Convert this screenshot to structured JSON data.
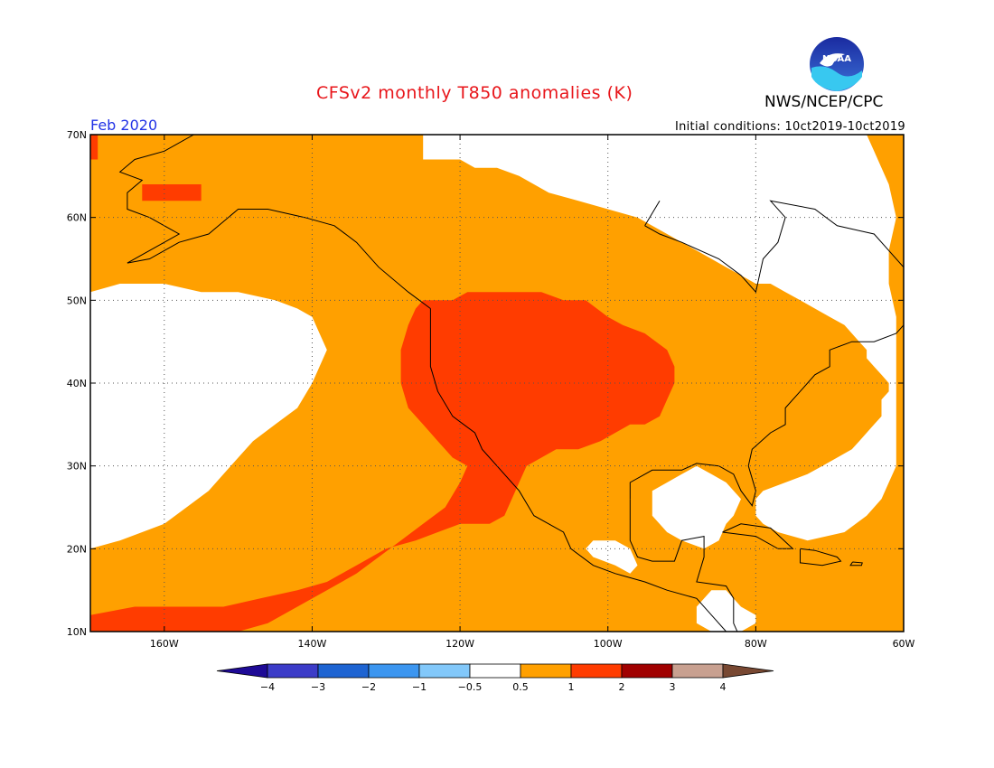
{
  "header": {
    "title": "CFSv2 monthly T850 anomalies (K)",
    "agency": "NWS/NCEP/CPC",
    "month": "Feb 2020",
    "initial_conditions": "Initial conditions: 10ct2019-10ct2019",
    "logo_text": "NOAA"
  },
  "map": {
    "lat_range": [
      10,
      70
    ],
    "lon_range": [
      -170,
      -60
    ],
    "lat_ticks": [
      {
        "value": 10,
        "label": "10N"
      },
      {
        "value": 20,
        "label": "20N"
      },
      {
        "value": 30,
        "label": "30N"
      },
      {
        "value": 40,
        "label": "40N"
      },
      {
        "value": 50,
        "label": "50N"
      },
      {
        "value": 60,
        "label": "60N"
      },
      {
        "value": 70,
        "label": "70N"
      }
    ],
    "lon_ticks": [
      {
        "value": -160,
        "label": "160W"
      },
      {
        "value": -140,
        "label": "140W"
      },
      {
        "value": -120,
        "label": "120W"
      },
      {
        "value": -100,
        "label": "100W"
      },
      {
        "value": -80,
        "label": "80W"
      },
      {
        "value": -60,
        "label": "60W"
      }
    ],
    "grid": "dotted"
  },
  "colorbar": {
    "bins": [
      {
        "color": "#1e0a96"
      },
      {
        "color": "#3c3cc8"
      },
      {
        "color": "#1e64d2"
      },
      {
        "color": "#3c96f0"
      },
      {
        "color": "#82c8fa"
      },
      {
        "color": "#ffffff"
      },
      {
        "color": "#ffa000"
      },
      {
        "color": "#ff3c00"
      },
      {
        "color": "#a00000"
      },
      {
        "color": "#c8a090"
      },
      {
        "color": "#784832"
      }
    ],
    "labels": [
      "-4",
      "-3",
      "-2",
      "-1",
      "-0.5",
      "0.5",
      "1",
      "2",
      "3",
      "4"
    ]
  },
  "fields": {
    "colors": {
      "weak": "#ffa000",
      "strong": "#ff3c00",
      "neutral": "#ffffff"
    },
    "neutral_regions": [
      {
        "name": "arctic-canada",
        "polygon": [
          [
            -125,
            70
          ],
          [
            -125,
            67
          ],
          [
            -120,
            67
          ],
          [
            -118,
            66
          ],
          [
            -115,
            66
          ],
          [
            -112,
            65
          ],
          [
            -110,
            64
          ],
          [
            -108,
            63
          ],
          [
            -104,
            62
          ],
          [
            -100,
            61
          ],
          [
            -96,
            60
          ],
          [
            -92,
            58
          ],
          [
            -90,
            57
          ],
          [
            -88,
            56
          ],
          [
            -86,
            55
          ],
          [
            -84,
            54
          ],
          [
            -82,
            53
          ],
          [
            -80,
            52
          ],
          [
            -78,
            52
          ],
          [
            -76,
            51
          ],
          [
            -74,
            50
          ],
          [
            -72,
            49
          ],
          [
            -70,
            48
          ],
          [
            -68,
            47
          ],
          [
            -67,
            46
          ],
          [
            -66,
            45
          ],
          [
            -65,
            44
          ],
          [
            -65,
            43
          ],
          [
            -64,
            42
          ],
          [
            -63,
            41
          ],
          [
            -62,
            40
          ],
          [
            -62,
            39
          ],
          [
            -63,
            38
          ],
          [
            -63,
            36
          ],
          [
            -64,
            35
          ],
          [
            -65,
            34
          ],
          [
            -66,
            33
          ],
          [
            -67,
            32
          ],
          [
            -69,
            31
          ],
          [
            -71,
            30
          ],
          [
            -73,
            29
          ],
          [
            -76,
            28
          ],
          [
            -79,
            27
          ],
          [
            -80,
            26
          ],
          [
            -80,
            24
          ],
          [
            -79,
            23
          ],
          [
            -77,
            22
          ],
          [
            -73,
            21
          ],
          [
            -68,
            22
          ],
          [
            -65,
            24
          ],
          [
            -63,
            26
          ],
          [
            -62,
            28
          ],
          [
            -61,
            30
          ],
          [
            -61,
            33
          ],
          [
            -61,
            36
          ],
          [
            -61,
            42
          ],
          [
            -61,
            48
          ],
          [
            -62,
            52
          ],
          [
            -62,
            56
          ],
          [
            -61,
            60
          ],
          [
            -62,
            64
          ],
          [
            -63,
            66
          ],
          [
            -64,
            68
          ],
          [
            -65,
            70
          ]
        ]
      },
      {
        "name": "gulf-mexico",
        "polygon": [
          [
            -94,
            24
          ],
          [
            -92,
            22
          ],
          [
            -90,
            21
          ],
          [
            -87,
            20
          ],
          [
            -85,
            21
          ],
          [
            -84,
            23
          ],
          [
            -83,
            24
          ],
          [
            -82,
            26
          ],
          [
            -84,
            28
          ],
          [
            -86,
            29
          ],
          [
            -88,
            30
          ],
          [
            -90,
            29
          ],
          [
            -92,
            28
          ],
          [
            -94,
            27
          ]
        ]
      },
      {
        "name": "central-america-gap",
        "polygon": [
          [
            -84,
            15
          ],
          [
            -82,
            13
          ],
          [
            -80,
            12
          ],
          [
            -80,
            11
          ],
          [
            -82,
            10
          ],
          [
            -86,
            10
          ],
          [
            -88,
            11
          ],
          [
            -88,
            13
          ],
          [
            -86,
            15
          ]
        ]
      },
      {
        "name": "mexico-gap",
        "polygon": [
          [
            -103,
            20
          ],
          [
            -102,
            19
          ],
          [
            -99,
            18
          ],
          [
            -97,
            17
          ],
          [
            -96,
            18
          ],
          [
            -97,
            20
          ],
          [
            -99,
            21
          ],
          [
            -102,
            21
          ]
        ]
      },
      {
        "name": "north-pacific",
        "polygon": [
          [
            -170,
            51
          ],
          [
            -166,
            52
          ],
          [
            -160,
            52
          ],
          [
            -155,
            51
          ],
          [
            -150,
            51
          ],
          [
            -145,
            50
          ],
          [
            -142,
            49
          ],
          [
            -140,
            48
          ],
          [
            -139,
            46
          ],
          [
            -138,
            44
          ],
          [
            -139,
            42
          ],
          [
            -140,
            40
          ],
          [
            -142,
            37
          ],
          [
            -145,
            35
          ],
          [
            -148,
            33
          ],
          [
            -150,
            31
          ],
          [
            -152,
            29
          ],
          [
            -154,
            27
          ],
          [
            -157,
            25
          ],
          [
            -160,
            23
          ],
          [
            -163,
            22
          ],
          [
            -166,
            21
          ],
          [
            -170,
            20
          ]
        ]
      }
    ],
    "strong_regions": [
      {
        "name": "western-us",
        "polygon": [
          [
            -125,
            50
          ],
          [
            -121,
            50
          ],
          [
            -119,
            51
          ],
          [
            -116,
            51
          ],
          [
            -112,
            51
          ],
          [
            -109,
            51
          ],
          [
            -106,
            50
          ],
          [
            -103,
            50
          ],
          [
            -100,
            48
          ],
          [
            -98,
            47
          ],
          [
            -95,
            46
          ],
          [
            -92,
            44
          ],
          [
            -91,
            42
          ],
          [
            -91,
            40
          ],
          [
            -92,
            38
          ],
          [
            -93,
            36
          ],
          [
            -95,
            35
          ],
          [
            -97,
            35
          ],
          [
            -99,
            34
          ],
          [
            -101,
            33
          ],
          [
            -104,
            32
          ],
          [
            -107,
            32
          ],
          [
            -109,
            31
          ],
          [
            -111,
            30
          ],
          [
            -112,
            28
          ],
          [
            -113,
            26
          ],
          [
            -114,
            24
          ],
          [
            -116,
            23
          ],
          [
            -118,
            23
          ],
          [
            -120,
            23
          ],
          [
            -123,
            22
          ],
          [
            -126,
            21
          ],
          [
            -130,
            20
          ],
          [
            -134,
            18
          ],
          [
            -138,
            16
          ],
          [
            -142,
            15
          ],
          [
            -147,
            14
          ],
          [
            -152,
            13
          ],
          [
            -158,
            13
          ],
          [
            -164,
            13
          ],
          [
            -170,
            12
          ],
          [
            -170,
            10
          ],
          [
            -163,
            10
          ],
          [
            -156,
            10
          ],
          [
            -150,
            10
          ],
          [
            -146,
            11
          ],
          [
            -142,
            13
          ],
          [
            -138,
            15
          ],
          [
            -134,
            17
          ],
          [
            -131,
            19
          ],
          [
            -128,
            21
          ],
          [
            -125,
            23
          ],
          [
            -122,
            25
          ],
          [
            -120,
            28
          ],
          [
            -119,
            30
          ],
          [
            -121,
            31
          ],
          [
            -123,
            33
          ],
          [
            -125,
            35
          ],
          [
            -127,
            37
          ],
          [
            -128,
            40
          ],
          [
            -128,
            44
          ],
          [
            -127,
            47
          ],
          [
            -126,
            49
          ]
        ]
      },
      {
        "name": "alaska-strong",
        "polygon": [
          [
            -163,
            64
          ],
          [
            -155,
            64
          ],
          [
            -155,
            62
          ],
          [
            -158,
            62
          ],
          [
            -163,
            62
          ]
        ]
      },
      {
        "name": "greenland-edge",
        "polygon": [
          [
            -170,
            70
          ],
          [
            -169,
            70
          ],
          [
            -169,
            67
          ],
          [
            -170,
            67
          ]
        ]
      }
    ],
    "weak_pockets": [
      {
        "name": "pacific-pocket",
        "polygon": [
          [
            -128,
            32
          ],
          [
            -127,
            32
          ],
          [
            -127,
            30
          ],
          [
            -128,
            30
          ]
        ]
      }
    ]
  }
}
